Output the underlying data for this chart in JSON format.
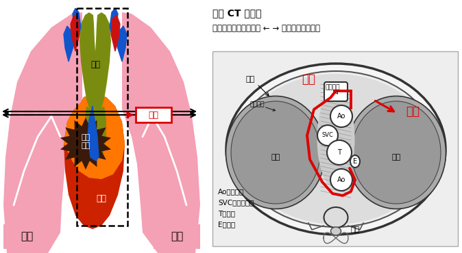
{
  "title_right": "胸部 CT 画像：",
  "subtitle_right": "左図内の二重点線部（ ← → ）での体の横断像",
  "label_thymus": "胸腺",
  "label_mediastinum": "縦隔",
  "label_mediastinum_tumor": "縦隔\n腫瘍",
  "label_heart": "心臓",
  "label_right_lung": "右肺",
  "label_left_lung": "左肺",
  "label_chest_wall": "胸壁",
  "label_chest_cavity": "胸腔",
  "label_mediastinum_ct": "縦隔",
  "label_right_lung_ct": "右肺",
  "label_left_lung_ct": "左肺",
  "label_spine": "背骨",
  "label_parietal_pleura_l": "壁側胸膜",
  "label_visceral_pleura": "臓側胸膜",
  "label_ao1": "Ao",
  "label_ao2": "Ao",
  "label_svc": "SVC",
  "label_t": "T",
  "label_e": "E",
  "legend_ao": "Ao：大動脈",
  "legend_svc": "SVC：上大静脈",
  "legend_t": "T：気管",
  "legend_e": "E：食道",
  "bg_color": "#ffffff",
  "lung_color": "#f4a0b5",
  "heart_orange": "#ff7700",
  "heart_red": "#cc2200",
  "thymus_color": "#7a8c10",
  "tumor_color": "#3a1a0a",
  "box_pink_color": "#f4a0b5",
  "ct_bg_color": "#e8e8e8",
  "ct_lung_color": "#aaaaaa",
  "ct_body_color": "#cccccc",
  "red_color": "#dd0000",
  "black": "#000000",
  "white": "#ffffff",
  "vessel_blue": "#1155cc",
  "vessel_red": "#cc1111"
}
